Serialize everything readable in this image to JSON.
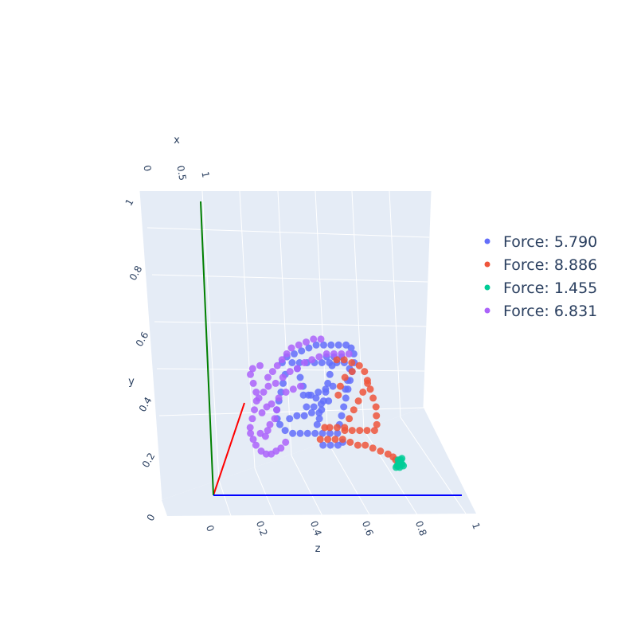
{
  "chart_data": {
    "type": "scatter",
    "dimensions": 3,
    "title": "",
    "axes": {
      "x": {
        "label": "x",
        "ticks": [
          "0",
          "0.5",
          "1"
        ],
        "range": [
          0,
          1
        ]
      },
      "y": {
        "label": "y",
        "ticks": [
          "0",
          "0.2",
          "0.4",
          "0.6",
          "0.8",
          "1"
        ],
        "range": [
          0,
          1
        ]
      },
      "z": {
        "label": "z",
        "ticks": [
          "0",
          "0.2",
          "0.4",
          "0.6",
          "0.8",
          "1"
        ],
        "range": [
          0,
          1
        ]
      }
    },
    "axis_lines": [
      {
        "axis": "x",
        "color": "#ff0000"
      },
      {
        "axis": "y",
        "color": "#008000"
      },
      {
        "axis": "z",
        "color": "#0000ff"
      }
    ],
    "legend_position": "right",
    "colors": {
      "scene_bg": "#e5ecf6",
      "grid": "#ffffff"
    },
    "series": [
      {
        "name": "Force: 5.790",
        "color": "#636efa",
        "points": [
          [
            0.3,
            0.45
          ],
          [
            0.32,
            0.47
          ],
          [
            0.35,
            0.48
          ],
          [
            0.38,
            0.49
          ],
          [
            0.41,
            0.5
          ],
          [
            0.44,
            0.51
          ],
          [
            0.47,
            0.51
          ],
          [
            0.5,
            0.51
          ],
          [
            0.53,
            0.51
          ],
          [
            0.56,
            0.51
          ],
          [
            0.58,
            0.5
          ],
          [
            0.59,
            0.48
          ],
          [
            0.59,
            0.45
          ],
          [
            0.58,
            0.42
          ],
          [
            0.57,
            0.39
          ],
          [
            0.56,
            0.36
          ],
          [
            0.55,
            0.33
          ],
          [
            0.54,
            0.3
          ],
          [
            0.53,
            0.27
          ],
          [
            0.52,
            0.24
          ],
          [
            0.51,
            0.21
          ],
          [
            0.48,
            0.21
          ],
          [
            0.45,
            0.21
          ],
          [
            0.42,
            0.21
          ],
          [
            0.39,
            0.21
          ],
          [
            0.36,
            0.21
          ],
          [
            0.33,
            0.21
          ],
          [
            0.3,
            0.22
          ],
          [
            0.28,
            0.24
          ],
          [
            0.27,
            0.26
          ],
          [
            0.27,
            0.29
          ],
          [
            0.28,
            0.32
          ],
          [
            0.29,
            0.35
          ],
          [
            0.3,
            0.38
          ],
          [
            0.31,
            0.41
          ],
          [
            0.34,
            0.45
          ],
          [
            0.37,
            0.45
          ],
          [
            0.4,
            0.45
          ],
          [
            0.43,
            0.45
          ],
          [
            0.46,
            0.45
          ],
          [
            0.49,
            0.45
          ],
          [
            0.52,
            0.45
          ],
          [
            0.55,
            0.45
          ],
          [
            0.5,
            0.44
          ],
          [
            0.49,
            0.41
          ],
          [
            0.48,
            0.38
          ],
          [
            0.47,
            0.35
          ],
          [
            0.46,
            0.32
          ],
          [
            0.45,
            0.29
          ],
          [
            0.44,
            0.26
          ],
          [
            0.43,
            0.24
          ],
          [
            0.38,
            0.34
          ],
          [
            0.41,
            0.34
          ],
          [
            0.44,
            0.35
          ],
          [
            0.47,
            0.36
          ],
          [
            0.5,
            0.37
          ],
          [
            0.39,
            0.3
          ],
          [
            0.42,
            0.3
          ],
          [
            0.45,
            0.31
          ],
          [
            0.48,
            0.32
          ],
          [
            0.32,
            0.26
          ],
          [
            0.35,
            0.27
          ],
          [
            0.38,
            0.27
          ],
          [
            0.41,
            0.28
          ],
          [
            0.44,
            0.28
          ],
          [
            0.36,
            0.43
          ],
          [
            0.37,
            0.4
          ],
          [
            0.38,
            0.37
          ],
          [
            0.4,
            0.34
          ],
          [
            0.43,
            0.33
          ],
          [
            0.55,
            0.36
          ],
          [
            0.56,
            0.39
          ],
          [
            0.57,
            0.43
          ],
          [
            0.54,
            0.47
          ],
          [
            0.51,
            0.47
          ],
          [
            0.48,
            0.47
          ],
          [
            0.45,
            0.17
          ],
          [
            0.48,
            0.17
          ],
          [
            0.51,
            0.17
          ],
          [
            0.53,
            0.18
          ]
        ]
      },
      {
        "name": "Force: 8.886",
        "color": "#ef553b",
        "points": [
          [
            0.52,
            0.46
          ],
          [
            0.55,
            0.46
          ],
          [
            0.58,
            0.45
          ],
          [
            0.61,
            0.44
          ],
          [
            0.63,
            0.42
          ],
          [
            0.64,
            0.39
          ],
          [
            0.65,
            0.36
          ],
          [
            0.66,
            0.33
          ],
          [
            0.67,
            0.3
          ],
          [
            0.67,
            0.27
          ],
          [
            0.67,
            0.24
          ],
          [
            0.66,
            0.22
          ],
          [
            0.63,
            0.22
          ],
          [
            0.6,
            0.22
          ],
          [
            0.57,
            0.22
          ],
          [
            0.54,
            0.22
          ],
          [
            0.51,
            0.23
          ],
          [
            0.48,
            0.23
          ],
          [
            0.46,
            0.23
          ],
          [
            0.64,
            0.38
          ],
          [
            0.62,
            0.35
          ],
          [
            0.6,
            0.32
          ],
          [
            0.58,
            0.29
          ],
          [
            0.56,
            0.26
          ],
          [
            0.54,
            0.23
          ],
          [
            0.58,
            0.42
          ],
          [
            0.55,
            0.4
          ],
          [
            0.53,
            0.37
          ],
          [
            0.52,
            0.34
          ],
          [
            0.44,
            0.19
          ],
          [
            0.47,
            0.19
          ],
          [
            0.5,
            0.19
          ],
          [
            0.53,
            0.19
          ],
          [
            0.56,
            0.18
          ],
          [
            0.59,
            0.17
          ],
          [
            0.62,
            0.17
          ],
          [
            0.65,
            0.16
          ],
          [
            0.68,
            0.15
          ],
          [
            0.71,
            0.14
          ],
          [
            0.73,
            0.13
          ],
          [
            0.74,
            0.12
          ],
          [
            0.75,
            0.11
          ]
        ]
      },
      {
        "name": "Force: 1.455",
        "color": "#00cc96",
        "points": [
          [
            0.75,
            0.12
          ],
          [
            0.755,
            0.115
          ],
          [
            0.76,
            0.11
          ],
          [
            0.765,
            0.105
          ],
          [
            0.77,
            0.1
          ],
          [
            0.75,
            0.1
          ],
          [
            0.74,
            0.095
          ],
          [
            0.745,
            0.1
          ],
          [
            0.76,
            0.12
          ],
          [
            0.765,
            0.125
          ],
          [
            0.755,
            0.095
          ],
          [
            0.75,
            0.105
          ]
        ]
      },
      {
        "name": "Force: 6.831",
        "color": "#ab63fa",
        "points": [
          [
            0.16,
            0.21
          ],
          [
            0.17,
            0.19
          ],
          [
            0.18,
            0.17
          ],
          [
            0.2,
            0.15
          ],
          [
            0.22,
            0.14
          ],
          [
            0.24,
            0.14
          ],
          [
            0.26,
            0.15
          ],
          [
            0.28,
            0.16
          ],
          [
            0.3,
            0.18
          ],
          [
            0.16,
            0.23
          ],
          [
            0.17,
            0.26
          ],
          [
            0.18,
            0.29
          ],
          [
            0.19,
            0.32
          ],
          [
            0.19,
            0.35
          ],
          [
            0.18,
            0.38
          ],
          [
            0.17,
            0.41
          ],
          [
            0.18,
            0.43
          ],
          [
            0.21,
            0.44
          ],
          [
            0.24,
            0.4
          ],
          [
            0.26,
            0.42
          ],
          [
            0.28,
            0.44
          ],
          [
            0.3,
            0.46
          ],
          [
            0.32,
            0.48
          ],
          [
            0.34,
            0.5
          ],
          [
            0.37,
            0.51
          ],
          [
            0.4,
            0.52
          ],
          [
            0.43,
            0.53
          ],
          [
            0.46,
            0.53
          ],
          [
            0.2,
            0.33
          ],
          [
            0.22,
            0.35
          ],
          [
            0.24,
            0.37
          ],
          [
            0.27,
            0.38
          ],
          [
            0.3,
            0.4
          ],
          [
            0.33,
            0.42
          ],
          [
            0.36,
            0.43
          ],
          [
            0.39,
            0.45
          ],
          [
            0.42,
            0.46
          ],
          [
            0.45,
            0.47
          ],
          [
            0.48,
            0.48
          ],
          [
            0.51,
            0.48
          ],
          [
            0.54,
            0.48
          ],
          [
            0.57,
            0.48
          ],
          [
            0.21,
            0.28
          ],
          [
            0.23,
            0.3
          ],
          [
            0.25,
            0.31
          ],
          [
            0.28,
            0.33
          ],
          [
            0.31,
            0.35
          ],
          [
            0.34,
            0.36
          ],
          [
            0.37,
            0.37
          ],
          [
            0.2,
            0.21
          ],
          [
            0.22,
            0.2
          ],
          [
            0.23,
            0.22
          ],
          [
            0.24,
            0.24
          ],
          [
            0.26,
            0.26
          ],
          [
            0.27,
            0.29
          ]
        ]
      }
    ]
  }
}
